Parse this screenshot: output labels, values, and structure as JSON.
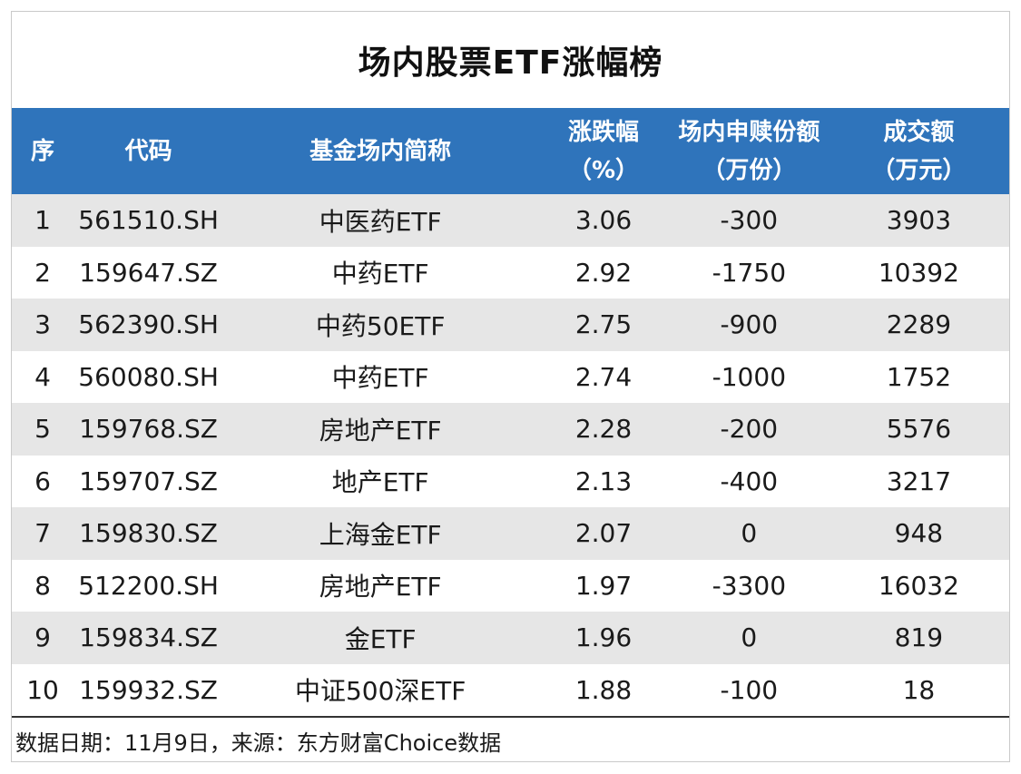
{
  "title": "场内股票ETF涨幅榜",
  "header": {
    "index": "序",
    "code": "代码",
    "name": "基金场内简称",
    "change_line1": "涨跌幅",
    "change_line2": "（%）",
    "shares_line1": "场内申赎份额",
    "shares_line2": "（万份）",
    "amount_line1": "成交额",
    "amount_line2": "（万元）"
  },
  "rows": [
    {
      "index": "1",
      "code": "561510.SH",
      "name": "中医药ETF",
      "change": "3.06",
      "shares": "-300",
      "amount": "3903"
    },
    {
      "index": "2",
      "code": "159647.SZ",
      "name": "中药ETF",
      "change": "2.92",
      "shares": "-1750",
      "amount": "10392"
    },
    {
      "index": "3",
      "code": "562390.SH",
      "name": "中药50ETF",
      "change": "2.75",
      "shares": "-900",
      "amount": "2289"
    },
    {
      "index": "4",
      "code": "560080.SH",
      "name": "中药ETF",
      "change": "2.74",
      "shares": "-1000",
      "amount": "1752"
    },
    {
      "index": "5",
      "code": "159768.SZ",
      "name": "房地产ETF",
      "change": "2.28",
      "shares": "-200",
      "amount": "5576"
    },
    {
      "index": "6",
      "code": "159707.SZ",
      "name": "地产ETF",
      "change": "2.13",
      "shares": "-400",
      "amount": "3217"
    },
    {
      "index": "7",
      "code": "159830.SZ",
      "name": "上海金ETF",
      "change": "2.07",
      "shares": "0",
      "amount": "948"
    },
    {
      "index": "8",
      "code": "512200.SH",
      "name": "房地产ETF",
      "change": "1.97",
      "shares": "-3300",
      "amount": "16032"
    },
    {
      "index": "9",
      "code": "159834.SZ",
      "name": "金ETF",
      "change": "1.96",
      "shares": "0",
      "amount": "819"
    },
    {
      "index": "10",
      "code": "159932.SZ",
      "name": "中证500深ETF",
      "change": "1.88",
      "shares": "-100",
      "amount": "18"
    }
  ],
  "footer": "数据日期：11月9日，来源：东方财富Choice数据",
  "colors": {
    "header_bg": "#2f74bb",
    "stripe_bg": "#e6e6e6"
  }
}
